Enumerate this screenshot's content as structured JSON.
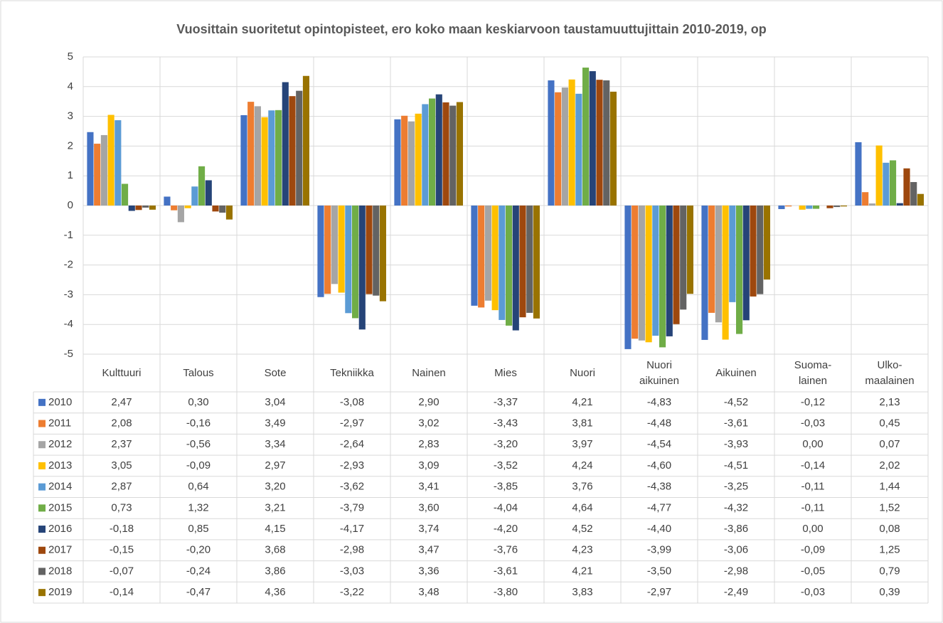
{
  "chart_data": {
    "type": "bar",
    "title": "Vuosittain suoritetut opintopisteet, ero koko maan keskiarvoon taustamuuttujittain 2010-2019, op",
    "categories": [
      "Kulttuuri",
      "Talous",
      "Sote",
      "Tekniikka",
      "Nainen",
      "Mies",
      "Nuori",
      "Nuori aikuinen",
      "Aikuinen",
      "Suoma-lainen",
      "Ulko-maalainen"
    ],
    "ylim": [
      -5,
      5
    ],
    "yticks": [
      5,
      4,
      3,
      2,
      1,
      0,
      -1,
      -2,
      -3,
      -4,
      -5
    ],
    "grid": true,
    "series": [
      {
        "name": "2010",
        "color": "#4472c4",
        "values": [
          2.47,
          0.3,
          3.04,
          -3.08,
          2.9,
          -3.37,
          4.21,
          -4.83,
          -4.52,
          -0.12,
          2.13
        ],
        "value_labels": [
          "2,47",
          "0,30",
          "3,04",
          "-3,08",
          "2,90",
          "-3,37",
          "4,21",
          "-4,83",
          "-4,52",
          "-0,12",
          "2,13"
        ]
      },
      {
        "name": "2011",
        "color": "#ed7d31",
        "values": [
          2.08,
          -0.16,
          3.49,
          -2.97,
          3.02,
          -3.43,
          3.81,
          -4.48,
          -3.61,
          -0.03,
          0.45
        ],
        "value_labels": [
          "2,08",
          "-0,16",
          "3,49",
          "-2,97",
          "3,02",
          "-3,43",
          "3,81",
          "-4,48",
          "-3,61",
          "-0,03",
          "0,45"
        ]
      },
      {
        "name": "2012",
        "color": "#a5a5a5",
        "values": [
          2.37,
          -0.56,
          3.34,
          -2.64,
          2.83,
          -3.2,
          3.97,
          -4.54,
          -3.93,
          0,
          0.07
        ],
        "value_labels": [
          "2,37",
          "-0,56",
          "3,34",
          "-2,64",
          "2,83",
          "-3,20",
          "3,97",
          "-4,54",
          "-3,93",
          "0,00",
          "0,07"
        ]
      },
      {
        "name": "2013",
        "color": "#ffc000",
        "values": [
          3.05,
          -0.09,
          2.97,
          -2.93,
          3.09,
          -3.52,
          4.24,
          -4.6,
          -4.51,
          -0.14,
          2.02
        ],
        "value_labels": [
          "3,05",
          "-0,09",
          "2,97",
          "-2,93",
          "3,09",
          "-3,52",
          "4,24",
          "-4,60",
          "-4,51",
          "-0,14",
          "2,02"
        ]
      },
      {
        "name": "2014",
        "color": "#5b9bd5",
        "values": [
          2.87,
          0.64,
          3.2,
          -3.62,
          3.41,
          -3.85,
          3.76,
          -4.38,
          -3.25,
          -0.11,
          1.44
        ],
        "value_labels": [
          "2,87",
          "0,64",
          "3,20",
          "-3,62",
          "3,41",
          "-3,85",
          "3,76",
          "-4,38",
          "-3,25",
          "-0,11",
          "1,44"
        ]
      },
      {
        "name": "2015",
        "color": "#70ad47",
        "values": [
          0.73,
          1.32,
          3.21,
          -3.79,
          3.6,
          -4.04,
          4.64,
          -4.77,
          -4.32,
          -0.11,
          1.52
        ],
        "value_labels": [
          "0,73",
          "1,32",
          "3,21",
          "-3,79",
          "3,60",
          "-4,04",
          "4,64",
          "-4,77",
          "-4,32",
          "-0,11",
          "1,52"
        ]
      },
      {
        "name": "2016",
        "color": "#264478",
        "values": [
          -0.18,
          0.85,
          4.15,
          -4.17,
          3.74,
          -4.2,
          4.52,
          -4.4,
          -3.86,
          0,
          0.08
        ],
        "value_labels": [
          "-0,18",
          "0,85",
          "4,15",
          "-4,17",
          "3,74",
          "-4,20",
          "4,52",
          "-4,40",
          "-3,86",
          "0,00",
          "0,08"
        ]
      },
      {
        "name": "2017",
        "color": "#9e480e",
        "values": [
          -0.15,
          -0.2,
          3.68,
          -2.98,
          3.47,
          -3.76,
          4.23,
          -3.99,
          -3.06,
          -0.09,
          1.25
        ],
        "value_labels": [
          "-0,15",
          "-0,20",
          "3,68",
          "-2,98",
          "3,47",
          "-3,76",
          "4,23",
          "-3,99",
          "-3,06",
          "-0,09",
          "1,25"
        ]
      },
      {
        "name": "2018",
        "color": "#636363",
        "values": [
          -0.07,
          -0.24,
          3.86,
          -3.03,
          3.36,
          -3.61,
          4.21,
          -3.5,
          -2.98,
          -0.05,
          0.79
        ],
        "value_labels": [
          "-0,07",
          "-0,24",
          "3,86",
          "-3,03",
          "3,36",
          "-3,61",
          "4,21",
          "-3,50",
          "-2,98",
          "-0,05",
          "0,79"
        ]
      },
      {
        "name": "2019",
        "color": "#997300",
        "values": [
          -0.14,
          -0.47,
          4.36,
          -3.22,
          3.48,
          -3.8,
          3.83,
          -2.97,
          -2.49,
          -0.03,
          0.39
        ],
        "value_labels": [
          "-0,14",
          "-0,47",
          "4,36",
          "-3,22",
          "3,48",
          "-3,80",
          "3,83",
          "-2,97",
          "-2,49",
          "-0,03",
          "0,39"
        ]
      }
    ]
  }
}
